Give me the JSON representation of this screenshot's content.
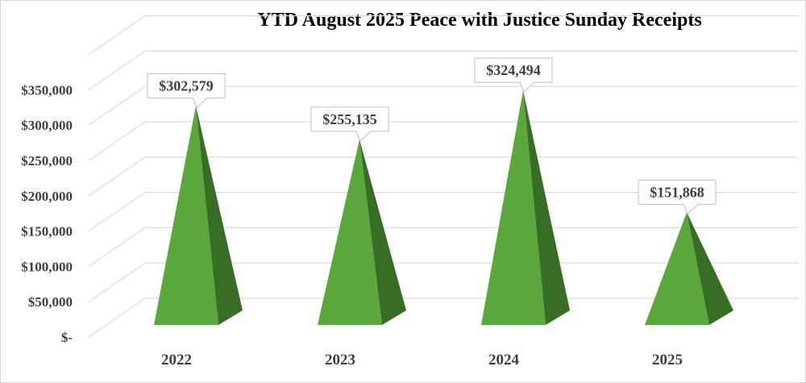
{
  "chart_data": {
    "type": "bar",
    "bar_shape": "3d-pyramid",
    "title": "YTD August 2025 Peace with Justice Sunday Receipts",
    "xlabel": "",
    "ylabel": "",
    "categories": [
      "2022",
      "2023",
      "2024",
      "2025"
    ],
    "values": [
      302579,
      255135,
      324494,
      151868
    ],
    "data_labels": [
      "$302,579",
      "$255,135",
      "$324,494",
      "$151,868"
    ],
    "y_ticks": [
      "$-",
      "$50,000",
      "$100,000",
      "$150,000",
      "$200,000",
      "$250,000",
      "$300,000",
      "$350,000"
    ],
    "ylim": [
      0,
      400000
    ],
    "grid": true,
    "legend": null,
    "colors": {
      "front_face": "#5aa83c",
      "side_face": "#386d26",
      "grid": "#d9d9d9"
    }
  }
}
